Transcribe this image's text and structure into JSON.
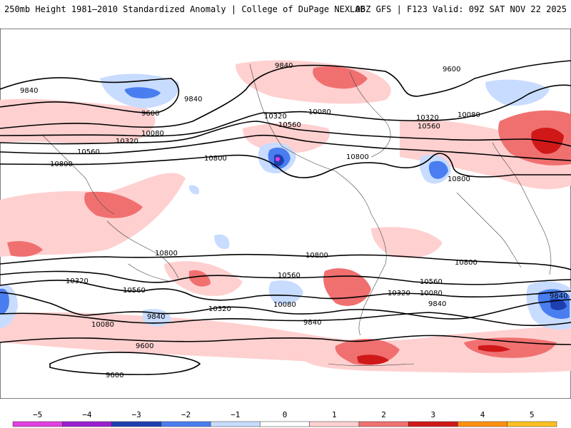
{
  "header": {
    "left_title": "250mb Height 1981–2010 Standardized Anomaly | College of DuPage NEXLAB",
    "right_title": "06Z GFS | F123 Valid: 09Z SAT NOV 22 2025"
  },
  "colorbar": {
    "ticks": [
      "−5",
      "−4",
      "−3",
      "−2",
      "−1",
      "0",
      "1",
      "2",
      "3",
      "4",
      "5"
    ],
    "colors": [
      "#e040e0",
      "#9b1fd0",
      "#1e3fb0",
      "#4a7ef0",
      "#c8dcff",
      "#ffffff",
      "#ffd0d0",
      "#f07070",
      "#d01818",
      "#ff9010",
      "#ffc020"
    ]
  },
  "contour_labels": {
    "c9840_pacific": "9840",
    "c9600_pacific_a": "9600",
    "c9600_pacific_b": "9600",
    "c9840_ak": "9840",
    "c9840_atlantic": "9840",
    "c10320_us": "10320",
    "c10560_us": "10560",
    "c10080_us": "10080",
    "c10320_atl": "10320",
    "c10080_atl": "10080",
    "c10560_atl": "10560",
    "c10080_pac": "10080",
    "c10320_pac": "10320",
    "c10560_pac": "10560",
    "c10800_w": "10800",
    "c10800_pac": "10800",
    "c10800_us": "10800",
    "c10800_atl": "10800",
    "c10800_s1": "10800",
    "c10800_s2": "10800",
    "c10800_s3": "10800",
    "c10560_s1": "10560",
    "c10560_s2": "10560",
    "c10560_s3": "10560",
    "c10320_s1": "10320",
    "c10320_s2": "10320",
    "c10320_s3": "10320",
    "c10080_s1": "10080",
    "c10080_s2": "10080",
    "c10080_s3": "10080",
    "c9840_s1": "9840",
    "c9840_s2": "9840",
    "c9840_s3": "9840",
    "c9840_s4": "9840",
    "c9600_s1": "9600",
    "c9600_s2": "9600"
  }
}
